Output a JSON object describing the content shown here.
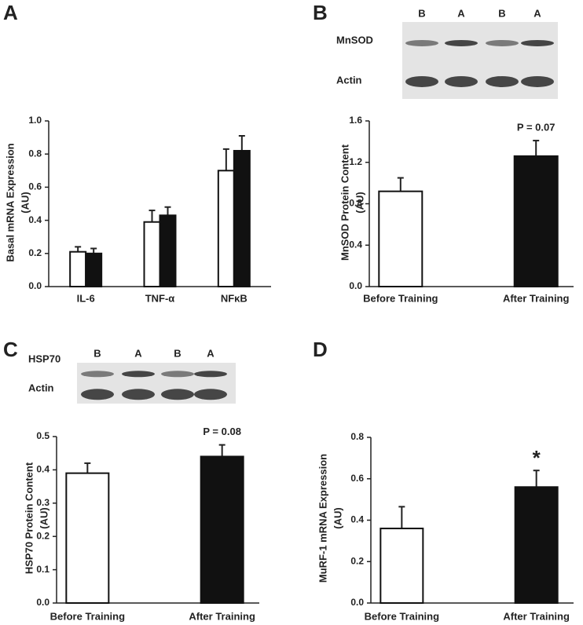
{
  "chart_data": [
    {
      "type": "bar",
      "panel": "A",
      "ylabel": [
        "Basal mRNA Expression",
        "(AU)"
      ],
      "categories": [
        "IL-6",
        "TNF-α",
        "NFκB"
      ],
      "series": [
        {
          "color": "#ffffff",
          "values": [
            0.21,
            0.39,
            0.7
          ],
          "errors": [
            0.03,
            0.07,
            0.13
          ]
        },
        {
          "color": "#111111",
          "values": [
            0.2,
            0.43,
            0.82
          ],
          "errors": [
            0.03,
            0.05,
            0.09
          ]
        }
      ],
      "ylim": [
        0,
        1.0
      ],
      "yticks": [
        {
          "value": 0,
          "label": "0.0"
        },
        0.2,
        0.4,
        0.6,
        0.8,
        {
          "value": 1,
          "label": "1.0"
        }
      ]
    },
    {
      "type": "bar",
      "panel": "B",
      "ylabel": [
        "MnSOD Protein Content",
        "(AU)"
      ],
      "blot": {
        "lanes": [
          "B",
          "A",
          "B",
          "A"
        ],
        "rows": [
          "MnSOD",
          "Actin"
        ]
      },
      "categories": [
        "Before Training",
        "After Training"
      ],
      "series": [
        {
          "colors": [
            "#ffffff",
            "#111111"
          ],
          "values": [
            0.92,
            1.26
          ],
          "errors": [
            0.13,
            0.15
          ]
        }
      ],
      "annotation": "P = 0.07",
      "ylim": [
        0,
        1.6
      ],
      "yticks": [
        {
          "value": 0,
          "label": "0.0"
        },
        0.4,
        0.8,
        1.2,
        1.6
      ]
    },
    {
      "type": "bar",
      "panel": "C",
      "ylabel": [
        "HSP70 Protein Content",
        "(AU)"
      ],
      "blot": {
        "lanes": [
          "B",
          "A",
          "B",
          "A"
        ],
        "rows": [
          "HSP70",
          "Actin"
        ]
      },
      "categories": [
        "Before Training",
        "After Training"
      ],
      "series": [
        {
          "colors": [
            "#ffffff",
            "#111111"
          ],
          "values": [
            0.39,
            0.44
          ],
          "errors": [
            0.03,
            0.035
          ]
        }
      ],
      "annotation": "P = 0.08",
      "ylim": [
        0,
        0.5
      ],
      "yticks": [
        {
          "value": 0,
          "label": "0.0"
        },
        0.1,
        0.2,
        0.3,
        0.4,
        0.5
      ]
    },
    {
      "type": "bar",
      "panel": "D",
      "ylabel": [
        "MuRF-1 mRNA Expression",
        "(AU)"
      ],
      "categories": [
        "Before Training",
        "After Training"
      ],
      "series": [
        {
          "colors": [
            "#ffffff",
            "#111111"
          ],
          "values": [
            0.36,
            0.56
          ],
          "errors": [
            0.105,
            0.08
          ]
        }
      ],
      "annotation": "*",
      "ylim": [
        0,
        0.8
      ],
      "yticks": [
        {
          "value": 0,
          "label": "0.0"
        },
        0.2,
        0.4,
        0.6,
        0.8
      ]
    }
  ]
}
